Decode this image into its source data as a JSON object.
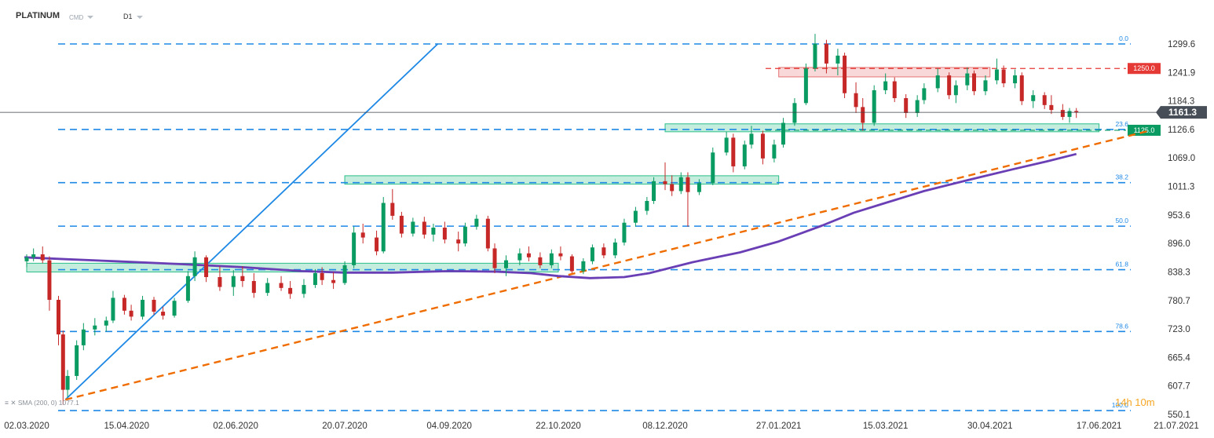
{
  "header": {
    "symbol": "PLATINUM",
    "symbol_type": "CMD",
    "interval": "D1"
  },
  "indicator": {
    "label": "SMA (200, 0) 1077.1"
  },
  "timer": "14h 10m",
  "chart_data": {
    "type": "candlestick",
    "title": "PLATINUM",
    "interval": "D1",
    "y_ticks": [
      "1299.6",
      "1241.9",
      "1184.3",
      "1126.6",
      "1069.0",
      "1011.3",
      "953.6",
      "896.0",
      "838.3",
      "780.7",
      "723.0",
      "665.4",
      "607.7",
      "550.1"
    ],
    "x_ticks": [
      "02.03.2020",
      "15.04.2020",
      "02.06.2020",
      "20.07.2020",
      "04.09.2020",
      "22.10.2020",
      "08.12.2020",
      "27.01.2021",
      "15.03.2021",
      "30.04.2021",
      "17.06.2021",
      "21.07.2021"
    ],
    "ylim": [
      550.1,
      1299.6
    ],
    "last_price": "1161.3",
    "fibonacci": [
      {
        "label": "0.0",
        "price": 1299.6
      },
      {
        "label": "23.6",
        "price": 1126.6
      },
      {
        "label": "38.2",
        "price": 1019.0
      },
      {
        "label": "50.0",
        "price": 931.0
      },
      {
        "label": "61.8",
        "price": 843.0
      },
      {
        "label": "78.6",
        "price": 718.0
      },
      {
        "label": "100.0",
        "price": 558.0
      }
    ],
    "levels": [
      {
        "label": "1250.0",
        "price": 1250.0,
        "color": "#e53935"
      },
      {
        "label": "1125.0",
        "price": 1125.0,
        "color": "#0a9b62"
      }
    ],
    "zones": [
      {
        "x0": "02.03.2020",
        "x1": "22.10.2020",
        "low": 838.3,
        "high": 856.0,
        "color": "#2bbf8a"
      },
      {
        "x0": "20.07.2020",
        "x1": "27.01.2021",
        "low": 1016.0,
        "high": 1033.0,
        "color": "#2bbf8a"
      },
      {
        "x0": "08.12.2020",
        "x1": "17.06.2021",
        "low": 1122.0,
        "high": 1138.0,
        "color": "#2bbf8a"
      },
      {
        "x0": "27.01.2021",
        "x1": "30.04.2021",
        "low": 1233.0,
        "high": 1252.0,
        "color": "#e57373"
      }
    ],
    "trendlines": [
      {
        "name": "blue",
        "color": "#1e88e5",
        "p1": [
          "2020-03-19",
          580
        ],
        "p2": [
          "2020-08-30",
          1300
        ]
      },
      {
        "name": "orange",
        "color": "#ef6c00",
        "p1": [
          "2020-03-19",
          580
        ],
        "p2": [
          "2021-07-10",
          1125
        ]
      }
    ],
    "sma": {
      "label": "SMA (200, 0)",
      "value": 1077.1,
      "color": "#6a3fb5",
      "points": [
        [
          "2020-03-01",
          868
        ],
        [
          "2020-03-20",
          864
        ],
        [
          "2020-04-10",
          860
        ],
        [
          "2020-05-10",
          854
        ],
        [
          "2020-06-05",
          848
        ],
        [
          "2020-07-01",
          840
        ],
        [
          "2020-07-20",
          837
        ],
        [
          "2020-08-10",
          837
        ],
        [
          "2020-09-04",
          840
        ],
        [
          "2020-09-25",
          839
        ],
        [
          "2020-10-10",
          836
        ],
        [
          "2020-10-22",
          830
        ],
        [
          "2020-11-05",
          826
        ],
        [
          "2020-11-20",
          828
        ],
        [
          "2020-12-01",
          836
        ],
        [
          "2020-12-20",
          858
        ],
        [
          "2021-01-10",
          878
        ],
        [
          "2021-01-27",
          900
        ],
        [
          "2021-02-15",
          932
        ],
        [
          "2021-03-01",
          958
        ],
        [
          "2021-03-15",
          978
        ],
        [
          "2021-04-01",
          1002
        ],
        [
          "2021-04-20",
          1024
        ],
        [
          "2021-05-10",
          1046
        ],
        [
          "2021-05-25",
          1062
        ],
        [
          "2021-06-07",
          1077
        ]
      ]
    },
    "ohlc": [
      {
        "d": "2020-03-02",
        "o": 860,
        "h": 874,
        "l": 848,
        "c": 868
      },
      {
        "d": "2020-03-05",
        "o": 868,
        "h": 886,
        "l": 860,
        "c": 874
      },
      {
        "d": "2020-03-09",
        "o": 874,
        "h": 890,
        "l": 856,
        "c": 862
      },
      {
        "d": "2020-03-12",
        "o": 862,
        "h": 870,
        "l": 760,
        "c": 782
      },
      {
        "d": "2020-03-16",
        "o": 782,
        "h": 790,
        "l": 690,
        "c": 712
      },
      {
        "d": "2020-03-18",
        "o": 712,
        "h": 720,
        "l": 570,
        "c": 600
      },
      {
        "d": "2020-03-20",
        "o": 600,
        "h": 640,
        "l": 585,
        "c": 628
      },
      {
        "d": "2020-03-24",
        "o": 628,
        "h": 700,
        "l": 620,
        "c": 690
      },
      {
        "d": "2020-03-27",
        "o": 690,
        "h": 735,
        "l": 680,
        "c": 722
      },
      {
        "d": "2020-04-01",
        "o": 722,
        "h": 745,
        "l": 710,
        "c": 730
      },
      {
        "d": "2020-04-06",
        "o": 730,
        "h": 748,
        "l": 718,
        "c": 740
      },
      {
        "d": "2020-04-09",
        "o": 740,
        "h": 800,
        "l": 735,
        "c": 786
      },
      {
        "d": "2020-04-14",
        "o": 786,
        "h": 792,
        "l": 752,
        "c": 760
      },
      {
        "d": "2020-04-17",
        "o": 760,
        "h": 772,
        "l": 740,
        "c": 748
      },
      {
        "d": "2020-04-22",
        "o": 748,
        "h": 790,
        "l": 742,
        "c": 782
      },
      {
        "d": "2020-04-27",
        "o": 782,
        "h": 788,
        "l": 752,
        "c": 758
      },
      {
        "d": "2020-05-01",
        "o": 758,
        "h": 768,
        "l": 742,
        "c": 750
      },
      {
        "d": "2020-05-06",
        "o": 750,
        "h": 786,
        "l": 746,
        "c": 780
      },
      {
        "d": "2020-05-12",
        "o": 780,
        "h": 840,
        "l": 776,
        "c": 830
      },
      {
        "d": "2020-05-15",
        "o": 830,
        "h": 880,
        "l": 820,
        "c": 868
      },
      {
        "d": "2020-05-20",
        "o": 868,
        "h": 872,
        "l": 818,
        "c": 828
      },
      {
        "d": "2020-05-26",
        "o": 828,
        "h": 850,
        "l": 800,
        "c": 808
      },
      {
        "d": "2020-06-01",
        "o": 808,
        "h": 842,
        "l": 790,
        "c": 830
      },
      {
        "d": "2020-06-05",
        "o": 830,
        "h": 850,
        "l": 808,
        "c": 820
      },
      {
        "d": "2020-06-10",
        "o": 820,
        "h": 836,
        "l": 786,
        "c": 796
      },
      {
        "d": "2020-06-16",
        "o": 796,
        "h": 826,
        "l": 790,
        "c": 816
      },
      {
        "d": "2020-06-22",
        "o": 816,
        "h": 830,
        "l": 800,
        "c": 806
      },
      {
        "d": "2020-06-26",
        "o": 806,
        "h": 820,
        "l": 784,
        "c": 794
      },
      {
        "d": "2020-07-02",
        "o": 794,
        "h": 824,
        "l": 786,
        "c": 812
      },
      {
        "d": "2020-07-07",
        "o": 812,
        "h": 844,
        "l": 806,
        "c": 836
      },
      {
        "d": "2020-07-10",
        "o": 836,
        "h": 848,
        "l": 812,
        "c": 822
      },
      {
        "d": "2020-07-15",
        "o": 822,
        "h": 838,
        "l": 804,
        "c": 816
      },
      {
        "d": "2020-07-20",
        "o": 816,
        "h": 860,
        "l": 812,
        "c": 852
      },
      {
        "d": "2020-07-24",
        "o": 852,
        "h": 930,
        "l": 846,
        "c": 918
      },
      {
        "d": "2020-07-28",
        "o": 918,
        "h": 936,
        "l": 896,
        "c": 908
      },
      {
        "d": "2020-08-03",
        "o": 908,
        "h": 922,
        "l": 872,
        "c": 880
      },
      {
        "d": "2020-08-06",
        "o": 880,
        "h": 990,
        "l": 876,
        "c": 978
      },
      {
        "d": "2020-08-10",
        "o": 978,
        "h": 1006,
        "l": 944,
        "c": 952
      },
      {
        "d": "2020-08-14",
        "o": 952,
        "h": 960,
        "l": 908,
        "c": 916
      },
      {
        "d": "2020-08-19",
        "o": 916,
        "h": 948,
        "l": 910,
        "c": 940
      },
      {
        "d": "2020-08-24",
        "o": 940,
        "h": 950,
        "l": 906,
        "c": 914
      },
      {
        "d": "2020-08-28",
        "o": 914,
        "h": 936,
        "l": 900,
        "c": 928
      },
      {
        "d": "2020-09-02",
        "o": 928,
        "h": 940,
        "l": 896,
        "c": 904
      },
      {
        "d": "2020-09-08",
        "o": 904,
        "h": 920,
        "l": 880,
        "c": 896
      },
      {
        "d": "2020-09-11",
        "o": 896,
        "h": 938,
        "l": 890,
        "c": 930
      },
      {
        "d": "2020-09-16",
        "o": 930,
        "h": 954,
        "l": 924,
        "c": 946
      },
      {
        "d": "2020-09-21",
        "o": 946,
        "h": 952,
        "l": 880,
        "c": 886
      },
      {
        "d": "2020-09-24",
        "o": 886,
        "h": 896,
        "l": 836,
        "c": 846
      },
      {
        "d": "2020-09-29",
        "o": 846,
        "h": 872,
        "l": 830,
        "c": 862
      },
      {
        "d": "2020-10-05",
        "o": 862,
        "h": 886,
        "l": 852,
        "c": 876
      },
      {
        "d": "2020-10-09",
        "o": 876,
        "h": 890,
        "l": 860,
        "c": 868
      },
      {
        "d": "2020-10-14",
        "o": 868,
        "h": 878,
        "l": 846,
        "c": 852
      },
      {
        "d": "2020-10-19",
        "o": 852,
        "h": 884,
        "l": 846,
        "c": 876
      },
      {
        "d": "2020-10-23",
        "o": 876,
        "h": 890,
        "l": 862,
        "c": 870
      },
      {
        "d": "2020-10-28",
        "o": 870,
        "h": 874,
        "l": 836,
        "c": 840
      },
      {
        "d": "2020-11-02",
        "o": 840,
        "h": 866,
        "l": 834,
        "c": 860
      },
      {
        "d": "2020-11-06",
        "o": 860,
        "h": 894,
        "l": 854,
        "c": 888
      },
      {
        "d": "2020-11-11",
        "o": 888,
        "h": 896,
        "l": 866,
        "c": 872
      },
      {
        "d": "2020-11-16",
        "o": 872,
        "h": 906,
        "l": 866,
        "c": 898
      },
      {
        "d": "2020-11-20",
        "o": 898,
        "h": 946,
        "l": 892,
        "c": 938
      },
      {
        "d": "2020-11-25",
        "o": 938,
        "h": 970,
        "l": 930,
        "c": 962
      },
      {
        "d": "2020-11-30",
        "o": 962,
        "h": 990,
        "l": 954,
        "c": 982
      },
      {
        "d": "2020-12-03",
        "o": 982,
        "h": 1030,
        "l": 976,
        "c": 1022
      },
      {
        "d": "2020-12-08",
        "o": 1022,
        "h": 1060,
        "l": 1004,
        "c": 1016
      },
      {
        "d": "2020-12-11",
        "o": 1016,
        "h": 1034,
        "l": 992,
        "c": 1002
      },
      {
        "d": "2020-12-15",
        "o": 1002,
        "h": 1040,
        "l": 996,
        "c": 1030
      },
      {
        "d": "2020-12-18",
        "o": 1030,
        "h": 1040,
        "l": 930,
        "c": 1000
      },
      {
        "d": "2020-12-23",
        "o": 1000,
        "h": 1026,
        "l": 994,
        "c": 1018
      },
      {
        "d": "2020-12-29",
        "o": 1018,
        "h": 1090,
        "l": 1014,
        "c": 1080
      },
      {
        "d": "2021-01-04",
        "o": 1080,
        "h": 1122,
        "l": 1074,
        "c": 1110
      },
      {
        "d": "2021-01-07",
        "o": 1110,
        "h": 1118,
        "l": 1040,
        "c": 1052
      },
      {
        "d": "2021-01-12",
        "o": 1052,
        "h": 1104,
        "l": 1046,
        "c": 1096
      },
      {
        "d": "2021-01-15",
        "o": 1096,
        "h": 1134,
        "l": 1088,
        "c": 1118
      },
      {
        "d": "2021-01-20",
        "o": 1118,
        "h": 1124,
        "l": 1056,
        "c": 1068
      },
      {
        "d": "2021-01-25",
        "o": 1068,
        "h": 1106,
        "l": 1060,
        "c": 1096
      },
      {
        "d": "2021-01-29",
        "o": 1096,
        "h": 1150,
        "l": 1090,
        "c": 1140
      },
      {
        "d": "2021-02-03",
        "o": 1140,
        "h": 1190,
        "l": 1134,
        "c": 1180
      },
      {
        "d": "2021-02-08",
        "o": 1180,
        "h": 1260,
        "l": 1176,
        "c": 1250
      },
      {
        "d": "2021-02-12",
        "o": 1250,
        "h": 1320,
        "l": 1244,
        "c": 1300
      },
      {
        "d": "2021-02-17",
        "o": 1300,
        "h": 1308,
        "l": 1240,
        "c": 1260
      },
      {
        "d": "2021-02-22",
        "o": 1260,
        "h": 1290,
        "l": 1236,
        "c": 1276
      },
      {
        "d": "2021-02-25",
        "o": 1276,
        "h": 1282,
        "l": 1190,
        "c": 1200
      },
      {
        "d": "2021-03-02",
        "o": 1200,
        "h": 1222,
        "l": 1160,
        "c": 1172
      },
      {
        "d": "2021-03-05",
        "o": 1172,
        "h": 1190,
        "l": 1124,
        "c": 1140
      },
      {
        "d": "2021-03-10",
        "o": 1140,
        "h": 1216,
        "l": 1134,
        "c": 1206
      },
      {
        "d": "2021-03-15",
        "o": 1206,
        "h": 1240,
        "l": 1198,
        "c": 1224
      },
      {
        "d": "2021-03-19",
        "o": 1224,
        "h": 1232,
        "l": 1182,
        "c": 1190
      },
      {
        "d": "2021-03-24",
        "o": 1190,
        "h": 1198,
        "l": 1150,
        "c": 1160
      },
      {
        "d": "2021-03-29",
        "o": 1160,
        "h": 1196,
        "l": 1152,
        "c": 1186
      },
      {
        "d": "2021-04-01",
        "o": 1186,
        "h": 1220,
        "l": 1178,
        "c": 1210
      },
      {
        "d": "2021-04-07",
        "o": 1210,
        "h": 1250,
        "l": 1202,
        "c": 1236
      },
      {
        "d": "2021-04-12",
        "o": 1236,
        "h": 1242,
        "l": 1188,
        "c": 1196
      },
      {
        "d": "2021-04-15",
        "o": 1196,
        "h": 1226,
        "l": 1180,
        "c": 1216
      },
      {
        "d": "2021-04-20",
        "o": 1216,
        "h": 1252,
        "l": 1206,
        "c": 1240
      },
      {
        "d": "2021-04-23",
        "o": 1240,
        "h": 1246,
        "l": 1196,
        "c": 1204
      },
      {
        "d": "2021-04-28",
        "o": 1204,
        "h": 1236,
        "l": 1196,
        "c": 1226
      },
      {
        "d": "2021-05-03",
        "o": 1226,
        "h": 1270,
        "l": 1218,
        "c": 1248
      },
      {
        "d": "2021-05-06",
        "o": 1248,
        "h": 1256,
        "l": 1212,
        "c": 1220
      },
      {
        "d": "2021-05-11",
        "o": 1220,
        "h": 1248,
        "l": 1210,
        "c": 1236
      },
      {
        "d": "2021-05-14",
        "o": 1236,
        "h": 1242,
        "l": 1176,
        "c": 1184
      },
      {
        "d": "2021-05-19",
        "o": 1184,
        "h": 1206,
        "l": 1170,
        "c": 1196
      },
      {
        "d": "2021-05-24",
        "o": 1196,
        "h": 1202,
        "l": 1168,
        "c": 1176
      },
      {
        "d": "2021-05-27",
        "o": 1176,
        "h": 1196,
        "l": 1158,
        "c": 1166
      },
      {
        "d": "2021-06-01",
        "o": 1166,
        "h": 1178,
        "l": 1146,
        "c": 1152
      },
      {
        "d": "2021-06-04",
        "o": 1152,
        "h": 1170,
        "l": 1140,
        "c": 1164
      },
      {
        "d": "2021-06-07",
        "o": 1164,
        "h": 1170,
        "l": 1150,
        "c": 1161.3
      }
    ]
  },
  "colors": {
    "bull": "#0a9b62",
    "bear": "#c62828",
    "fib": "#1e88e5",
    "last_price_bg": "#474e57",
    "resistance": "#e53935",
    "support": "#0a9b62",
    "sma": "#6a3fb5",
    "timer": "#f5a623"
  }
}
